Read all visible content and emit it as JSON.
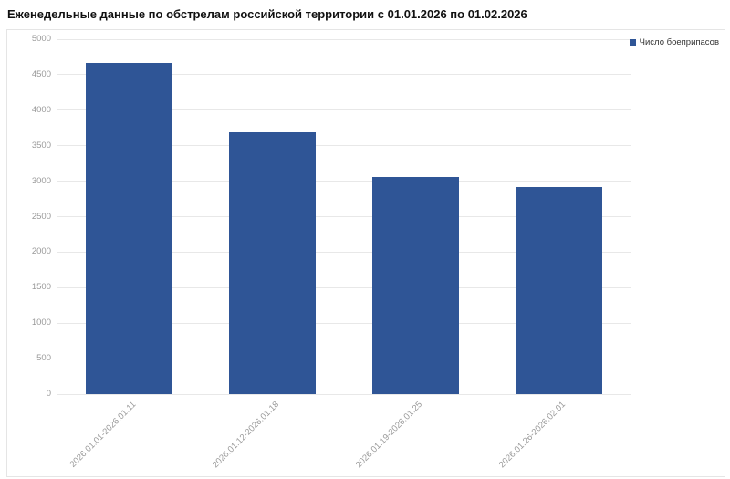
{
  "title": "Еженедельные данные по обстрелам российской территории с 01.01.2026 по 01.02.2026",
  "legend": {
    "label": "Число боеприпасов"
  },
  "colors": {
    "bar": "#2f5596",
    "grid": "#e8e8e8",
    "axis_label": "#9a9a9a",
    "legend_text": "#333333",
    "title_text": "#111111",
    "card_border": "#e5e5e5"
  },
  "chart_data": {
    "type": "bar",
    "title": "Еженедельные данные по обстрелам российской территории с 01.01.2026 по 01.02.2026",
    "categories": [
      "2026.01.01-2026.01.11",
      "2026.01.12-2026.01.18",
      "2026.01.19-2026.01.25",
      "2026.01.26-2026.02.01"
    ],
    "series": [
      {
        "name": "Число боеприпасов",
        "values": [
          4670,
          3690,
          3065,
          2915
        ],
        "color": "#2f5596"
      }
    ],
    "xlabel": "",
    "ylabel": "",
    "ylim": [
      0,
      5000
    ],
    "yticks": [
      0,
      500,
      1000,
      1500,
      2000,
      2500,
      3000,
      3500,
      4000,
      4500,
      5000
    ],
    "grid": true,
    "legend_position": "top-right",
    "x_tick_rotation": -45
  }
}
